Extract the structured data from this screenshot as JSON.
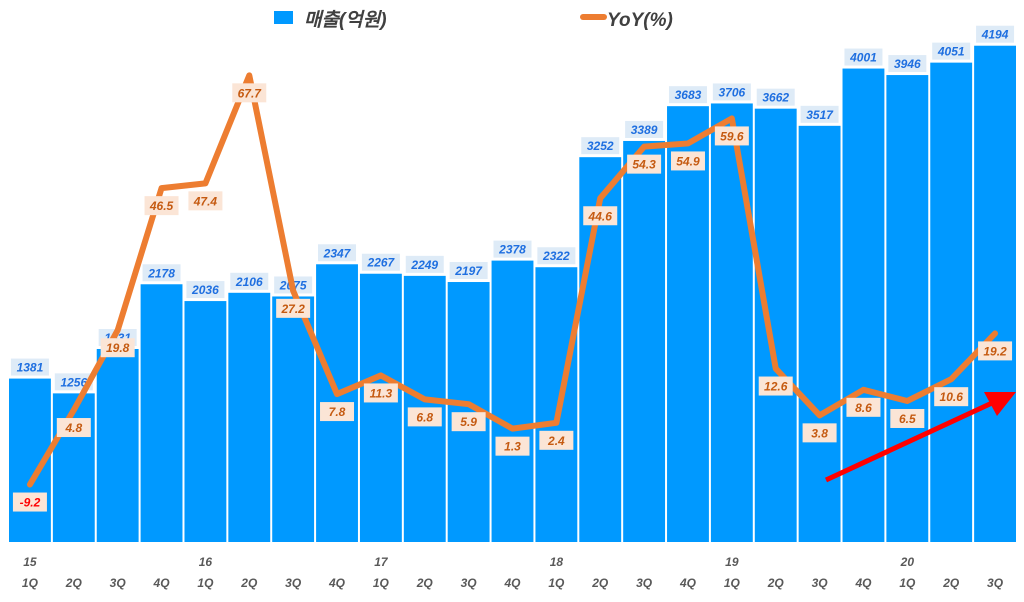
{
  "chart_data": {
    "type": "bar+line",
    "title": "",
    "legend": [
      {
        "name": "매출(억원)",
        "type": "bar",
        "color": "#0099FF"
      },
      {
        "name": "YoY(%)",
        "type": "line",
        "color": "#ED7D31"
      }
    ],
    "legend_placement": "top",
    "categories": [
      "1Q",
      "2Q",
      "3Q",
      "4Q",
      "1Q",
      "2Q",
      "3Q",
      "4Q",
      "1Q",
      "2Q",
      "3Q",
      "4Q",
      "1Q",
      "2Q",
      "3Q",
      "4Q",
      "1Q",
      "2Q",
      "3Q",
      "4Q",
      "1Q",
      "2Q",
      "3Q"
    ],
    "year_labels": [
      "15",
      "",
      "",
      "",
      "16",
      "",
      "",
      "",
      "17",
      "",
      "",
      "",
      "18",
      "",
      "",
      "",
      "19",
      "",
      "",
      "",
      "20",
      "",
      ""
    ],
    "series": [
      {
        "name": "매출(억원)",
        "type": "bar",
        "values": [
          1381,
          1256,
          1631,
          2178,
          2036,
          2106,
          2075,
          2347,
          2267,
          2249,
          2197,
          2378,
          2322,
          3252,
          3389,
          3683,
          3706,
          3662,
          3517,
          4001,
          3946,
          4051,
          4194
        ]
      },
      {
        "name": "YoY(%)",
        "type": "line",
        "values": [
          -9.2,
          4.8,
          19.8,
          46.5,
          47.4,
          67.7,
          27.2,
          7.8,
          11.3,
          6.8,
          5.9,
          1.3,
          2.4,
          44.6,
          54.3,
          54.9,
          59.6,
          12.6,
          3.8,
          8.6,
          6.5,
          10.6,
          19.2
        ]
      }
    ],
    "ylim_bar": [
      0,
      4200
    ],
    "ylim_line": [
      -20,
      73.4
    ],
    "grid": false,
    "annotation": "red upward trend arrow",
    "colors": {
      "bar": "#0099FF",
      "line": "#ED7D31",
      "bar_label": "#1F6FE0",
      "line_label": "#C55A11",
      "negative_label": "#FF0000",
      "arrow": "#FF0000"
    }
  }
}
